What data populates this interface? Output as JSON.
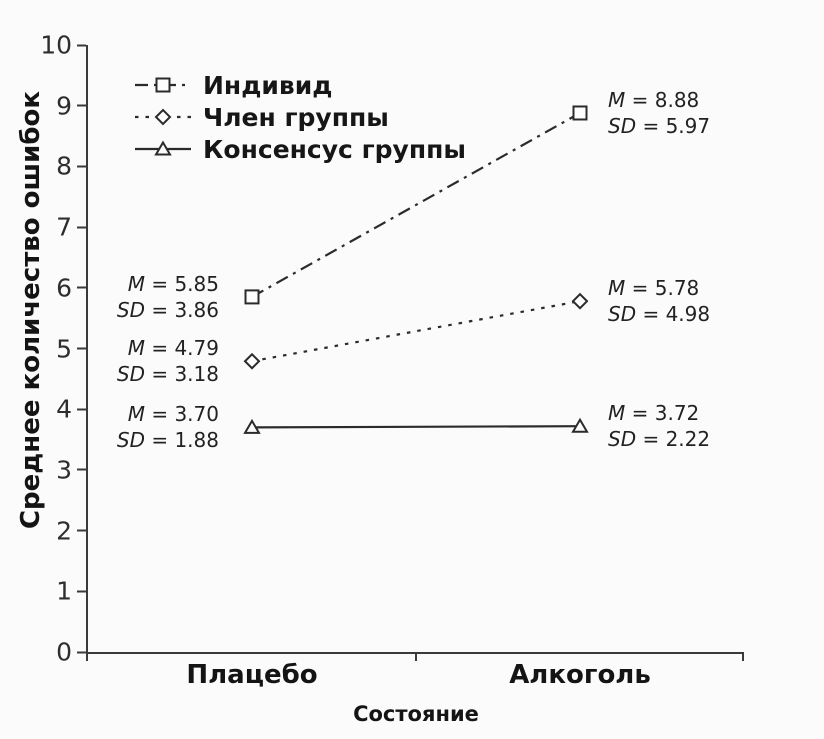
{
  "chart_data": {
    "type": "line",
    "title": "",
    "xlabel": "Состояние",
    "ylabel": "Среднее количество ошибок",
    "categories": [
      "Плацебо",
      "Алкоголь"
    ],
    "ylim": [
      0,
      10
    ],
    "yticks": [
      0,
      1,
      2,
      3,
      4,
      5,
      6,
      7,
      8,
      9,
      10
    ],
    "grid": false,
    "legend_position": "top-left-inside",
    "line_color": "#2b2b2b",
    "stat_prefix": {
      "mean": "M",
      "sd": "SD"
    },
    "series": [
      {
        "name": "Индивид",
        "marker": "square",
        "linestyle": "dashdot",
        "values": [
          5.85,
          8.88
        ],
        "value_labels": [
          "5.85",
          "8.88"
        ],
        "sd_values": [
          3.86,
          5.97
        ],
        "sd_labels": [
          "3.86",
          "5.97"
        ]
      },
      {
        "name": "Член группы",
        "marker": "diamond",
        "linestyle": "dotted",
        "values": [
          4.79,
          5.78
        ],
        "value_labels": [
          "4.79",
          "5.78"
        ],
        "sd_values": [
          3.18,
          4.98
        ],
        "sd_labels": [
          "3.18",
          "4.98"
        ]
      },
      {
        "name": "Консенсус группы",
        "marker": "triangle",
        "linestyle": "solid",
        "values": [
          3.7,
          3.72
        ],
        "value_labels": [
          "3.70",
          "3.72"
        ],
        "sd_values": [
          1.88,
          2.22
        ],
        "sd_labels": [
          "1.88",
          "2.22"
        ]
      }
    ]
  }
}
